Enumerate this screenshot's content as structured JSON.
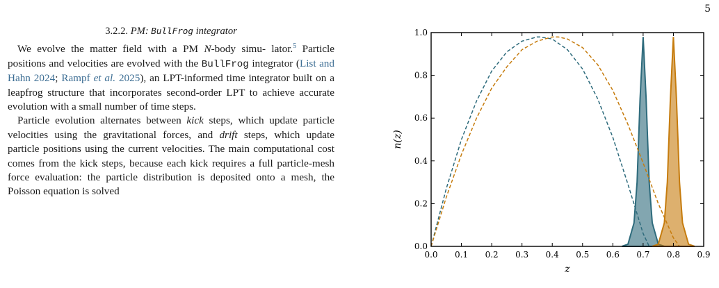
{
  "page": {
    "number": "5"
  },
  "section": {
    "number": "3.2.2.",
    "title_prefix": "PM:",
    "title_code": "BullFrog",
    "title_suffix": "integrator"
  },
  "para1": {
    "t1": "We evolve the matter field with a PM ",
    "n_italic": "N",
    "t2": "-body simu-",
    "t3": "lator.",
    "footnote": "5",
    "t4": " Particle positions and velocities are evolved with",
    "t5": "the ",
    "code": "BullFrog",
    "t6": " integrator (",
    "cite1": "List and Hahn 2024",
    "t7": "; ",
    "cite2a": "Rampf",
    "cite2b_italic": "et al.",
    "cite2c": " 2025",
    "t8": "), an LPT-informed time integrator built on a",
    "t9": "leapfrog structure that incorporates second-order LPT to",
    "t10": "achieve accurate evolution with a small number of time",
    "t11": "steps."
  },
  "para2": {
    "t1": "Particle evolution alternates between ",
    "kick": "kick",
    "t2": " steps, which",
    "t3": "update particle velocities using the gravitational forces,",
    "t4": "and ",
    "drift": "drift",
    "t5": " steps, which update particle positions using the",
    "t6": "current velocities. The main computational cost comes",
    "t7": "from the kick steps, because each kick requires a full",
    "t8": "particle-mesh force evaluation: the particle distribution",
    "t9": "is deposited onto a mesh, the Poisson equation is solved"
  },
  "chart_data": {
    "type": "line",
    "xlabel": "z",
    "ylabel": "n(z)",
    "xlim": [
      0.0,
      0.9
    ],
    "ylim": [
      0.0,
      1.0
    ],
    "xticks": [
      "0.0",
      "0.1",
      "0.2",
      "0.3",
      "0.4",
      "0.5",
      "0.6",
      "0.7",
      "0.8",
      "0.9"
    ],
    "yticks": [
      "0.0",
      "0.2",
      "0.4",
      "0.6",
      "0.8",
      "1.0"
    ],
    "grid": false,
    "legend": "none",
    "colors": {
      "teal": "#2e6b7c",
      "orange": "#c67c0e"
    },
    "series": [
      {
        "style": "dashed",
        "color": "teal",
        "x": [
          0.0,
          0.05,
          0.1,
          0.15,
          0.2,
          0.25,
          0.3,
          0.35,
          0.36,
          0.4,
          0.45,
          0.5,
          0.55,
          0.6,
          0.65,
          0.7,
          0.72
        ],
        "y": [
          0.0,
          0.27,
          0.5,
          0.68,
          0.82,
          0.91,
          0.96,
          0.98,
          0.98,
          0.97,
          0.92,
          0.83,
          0.69,
          0.51,
          0.29,
          0.06,
          0.0
        ]
      },
      {
        "style": "dashed",
        "color": "orange",
        "x": [
          0.0,
          0.05,
          0.1,
          0.15,
          0.2,
          0.25,
          0.3,
          0.35,
          0.4,
          0.42,
          0.45,
          0.5,
          0.55,
          0.6,
          0.65,
          0.7,
          0.75,
          0.8,
          0.82
        ],
        "y": [
          0.0,
          0.23,
          0.43,
          0.6,
          0.74,
          0.84,
          0.92,
          0.96,
          0.98,
          0.98,
          0.97,
          0.93,
          0.85,
          0.73,
          0.57,
          0.39,
          0.2,
          0.04,
          0.0
        ]
      },
      {
        "style": "filled-peak",
        "color": "teal",
        "x": [
          0.63,
          0.65,
          0.67,
          0.68,
          0.69,
          0.7,
          0.71,
          0.72,
          0.73,
          0.75,
          0.77
        ],
        "y": [
          0.0,
          0.01,
          0.11,
          0.3,
          0.69,
          0.98,
          0.69,
          0.3,
          0.11,
          0.01,
          0.0
        ]
      },
      {
        "style": "filled-peak",
        "color": "orange",
        "x": [
          0.73,
          0.75,
          0.77,
          0.78,
          0.79,
          0.8,
          0.81,
          0.82,
          0.83,
          0.85,
          0.87
        ],
        "y": [
          0.0,
          0.01,
          0.11,
          0.3,
          0.69,
          0.98,
          0.69,
          0.3,
          0.11,
          0.01,
          0.0
        ]
      }
    ]
  }
}
